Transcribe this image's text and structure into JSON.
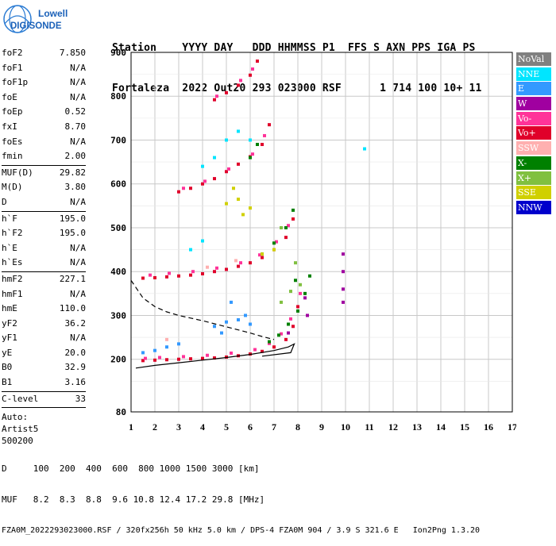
{
  "logo": {
    "line1": "Lowell",
    "line2": "DIGISONDE"
  },
  "header": {
    "line1": "Station    YYYY DAY   DDD HHMMSS P1  FFS S AXN PPS IGA PS",
    "line2": "Fortaleza  2022 Out20 293 023000 RSF      1 714 100 10+ 11"
  },
  "params": {
    "group1": [
      {
        "label": "foF2",
        "value": "7.850"
      },
      {
        "label": "foF1",
        "value": "N/A"
      },
      {
        "label": "foF1p",
        "value": "N/A"
      },
      {
        "label": "foE",
        "value": "N/A"
      },
      {
        "label": "foEp",
        "value": "0.52"
      },
      {
        "label": "fxI",
        "value": "8.70"
      },
      {
        "label": "foEs",
        "value": "N/A"
      },
      {
        "label": "fmin",
        "value": "2.00"
      }
    ],
    "group2": [
      {
        "label": "MUF(D)",
        "value": "29.82"
      },
      {
        "label": "M(D)",
        "value": "3.80"
      },
      {
        "label": "D",
        "value": "N/A"
      }
    ],
    "group3": [
      {
        "label": "h`F",
        "value": "195.0"
      },
      {
        "label": "h`F2",
        "value": "195.0"
      },
      {
        "label": "h`E",
        "value": "N/A"
      },
      {
        "label": "h`Es",
        "value": "N/A"
      }
    ],
    "group4": [
      {
        "label": "hmF2",
        "value": "227.1"
      },
      {
        "label": "hmF1",
        "value": "N/A"
      },
      {
        "label": "hmE",
        "value": "110.0"
      },
      {
        "label": "yF2",
        "value": "36.2"
      },
      {
        "label": "yF1",
        "value": "N/A"
      },
      {
        "label": "yE",
        "value": "20.0"
      },
      {
        "label": "B0",
        "value": "32.9"
      },
      {
        "label": "B1",
        "value": "3.16"
      }
    ],
    "group5": [
      {
        "label": "C-level",
        "value": "33"
      }
    ],
    "auto": [
      "Auto:",
      "Artist5",
      "500200"
    ]
  },
  "legend": [
    {
      "label": "NoVal",
      "color": "#808080"
    },
    {
      "label": "NNE",
      "color": "#00e5ff"
    },
    {
      "label": "E",
      "color": "#3399ff"
    },
    {
      "label": "W",
      "color": "#a000a0"
    },
    {
      "label": "Vo-",
      "color": "#ff3399"
    },
    {
      "label": "Vo+",
      "color": "#e0002a"
    },
    {
      "label": "SSW",
      "color": "#ffb0b0"
    },
    {
      "label": "X-",
      "color": "#008000"
    },
    {
      "label": "X+",
      "color": "#80c040"
    },
    {
      "label": "SSE",
      "color": "#d0d000"
    },
    {
      "label": "NNW",
      "color": "#0000cc"
    }
  ],
  "chart_data": {
    "type": "scatter",
    "xlim": [
      1,
      17
    ],
    "ylim": [
      80,
      900
    ],
    "x_ticks": [
      "1",
      "2",
      "3",
      "4",
      "5",
      "6",
      "7",
      "8",
      "9",
      "10",
      "11",
      "12",
      "13",
      "14",
      "15",
      "16",
      "17"
    ],
    "y_ticks": [
      "80",
      "200",
      "300",
      "400",
      "500",
      "600",
      "700",
      "800",
      "900"
    ],
    "y_tick_values": [
      80,
      200,
      300,
      400,
      500,
      600,
      700,
      800,
      900
    ],
    "grid": true,
    "series": [
      {
        "name": "Vo+",
        "values": [
          [
            1.5,
            197
          ],
          [
            2,
            198
          ],
          [
            2.5,
            199
          ],
          [
            3,
            200
          ],
          [
            3.5,
            201
          ],
          [
            4,
            202
          ],
          [
            4.5,
            203
          ],
          [
            5,
            205
          ],
          [
            5.5,
            208
          ],
          [
            6,
            212
          ],
          [
            6.5,
            218
          ],
          [
            7,
            228
          ],
          [
            7.5,
            245
          ],
          [
            7.8,
            275
          ],
          [
            8,
            320
          ],
          [
            1.5,
            385
          ],
          [
            2,
            386
          ],
          [
            2.5,
            388
          ],
          [
            3,
            390
          ],
          [
            3.5,
            392
          ],
          [
            4,
            395
          ],
          [
            4.5,
            400
          ],
          [
            5,
            405
          ],
          [
            5.5,
            412
          ],
          [
            6,
            420
          ],
          [
            6.5,
            432
          ],
          [
            7,
            450
          ],
          [
            7.5,
            478
          ],
          [
            7.8,
            520
          ],
          [
            3,
            582
          ],
          [
            3.5,
            590
          ],
          [
            4,
            600
          ],
          [
            4.5,
            612
          ],
          [
            5,
            628
          ],
          [
            5.5,
            645
          ],
          [
            6,
            662
          ],
          [
            6.5,
            690
          ],
          [
            6.8,
            735
          ],
          [
            4.5,
            792
          ],
          [
            5,
            808
          ],
          [
            5.5,
            825
          ],
          [
            6,
            848
          ],
          [
            6.3,
            880
          ]
        ]
      },
      {
        "name": "Vo-",
        "values": [
          [
            1.6,
            202
          ],
          [
            2.2,
            204
          ],
          [
            3.2,
            206
          ],
          [
            4.2,
            209
          ],
          [
            5.2,
            214
          ],
          [
            6.2,
            222
          ],
          [
            6.8,
            236
          ],
          [
            7.3,
            258
          ],
          [
            7.7,
            292
          ],
          [
            8.1,
            350
          ],
          [
            1.8,
            392
          ],
          [
            2.6,
            396
          ],
          [
            3.6,
            400
          ],
          [
            4.6,
            408
          ],
          [
            5.6,
            420
          ],
          [
            6.4,
            438
          ],
          [
            7.1,
            468
          ],
          [
            7.6,
            505
          ],
          [
            3.2,
            590
          ],
          [
            4.1,
            606
          ],
          [
            5.1,
            634
          ],
          [
            6.1,
            668
          ],
          [
            6.6,
            710
          ],
          [
            4.6,
            800
          ],
          [
            5.6,
            836
          ],
          [
            6.1,
            862
          ]
        ]
      },
      {
        "name": "X-",
        "values": [
          [
            6.8,
            240
          ],
          [
            7.2,
            255
          ],
          [
            7.6,
            280
          ],
          [
            8,
            310
          ],
          [
            8.3,
            350
          ],
          [
            8.5,
            390
          ],
          [
            7.9,
            380
          ],
          [
            6.5,
            440
          ],
          [
            7,
            465
          ],
          [
            7.5,
            500
          ],
          [
            7.8,
            540
          ],
          [
            6,
            660
          ],
          [
            6.3,
            690
          ]
        ]
      },
      {
        "name": "E",
        "values": [
          [
            1.5,
            215
          ],
          [
            2,
            220
          ],
          [
            2.5,
            228
          ],
          [
            3,
            235
          ],
          [
            4.5,
            275
          ],
          [
            5,
            285
          ],
          [
            5.5,
            290
          ],
          [
            6,
            280
          ],
          [
            5.2,
            330
          ],
          [
            5.8,
            300
          ],
          [
            4.8,
            260
          ]
        ]
      },
      {
        "name": "SSE",
        "values": [
          [
            5,
            555
          ],
          [
            5.5,
            565
          ],
          [
            6,
            545
          ],
          [
            6.5,
            440
          ],
          [
            7,
            450
          ],
          [
            5.3,
            590
          ],
          [
            5.7,
            530
          ]
        ]
      },
      {
        "name": "NNE",
        "values": [
          [
            4,
            640
          ],
          [
            4.5,
            660
          ],
          [
            5,
            700
          ],
          [
            5.5,
            720
          ],
          [
            6,
            700
          ],
          [
            3.5,
            450
          ],
          [
            4,
            470
          ],
          [
            10.8,
            680
          ]
        ]
      },
      {
        "name": "W",
        "values": [
          [
            9.9,
            330
          ],
          [
            9.9,
            360
          ],
          [
            9.9,
            400
          ],
          [
            9.9,
            440
          ],
          [
            8.4,
            300
          ],
          [
            8.3,
            340
          ],
          [
            7.6,
            260
          ]
        ]
      },
      {
        "name": "X+",
        "values": [
          [
            7.3,
            330
          ],
          [
            7.7,
            355
          ],
          [
            8.1,
            370
          ],
          [
            7.9,
            420
          ],
          [
            7.3,
            500
          ]
        ]
      },
      {
        "name": "SSW",
        "values": [
          [
            4.2,
            410
          ],
          [
            5.4,
            425
          ],
          [
            2.5,
            245
          ]
        ]
      }
    ],
    "profile_solid": [
      [
        1.2,
        180
      ],
      [
        2,
        186
      ],
      [
        3,
        192
      ],
      [
        4,
        198
      ],
      [
        5,
        204
      ],
      [
        6,
        211
      ],
      [
        7,
        220
      ],
      [
        7.6,
        228
      ],
      [
        7.85,
        235
      ],
      [
        7.7,
        215
      ],
      [
        6.5,
        207
      ]
    ],
    "profile_dashed": [
      [
        1,
        380
      ],
      [
        1.5,
        340
      ],
      [
        2,
        320
      ],
      [
        2.5,
        308
      ],
      [
        3,
        300
      ],
      [
        3.5,
        294
      ],
      [
        4,
        288
      ],
      [
        4.5,
        281
      ],
      [
        5,
        274
      ],
      [
        5.5,
        267
      ],
      [
        6,
        260
      ],
      [
        6.5,
        252
      ],
      [
        7,
        245
      ]
    ]
  },
  "footer": {
    "line1": "D     100  200  400  600  800 1000 1500 3000 [km]",
    "line2": "MUF   8.2  8.3  8.8  9.6 10.8 12.4 17.2 29.8 [MHz]",
    "line3": "FZA0M_2022293023000.RSF / 320fx256h 50 kHz 5.0 km / DPS-4 FZA0M 904 / 3.9 S 321.6 E   Ion2Png 1.3.20"
  }
}
